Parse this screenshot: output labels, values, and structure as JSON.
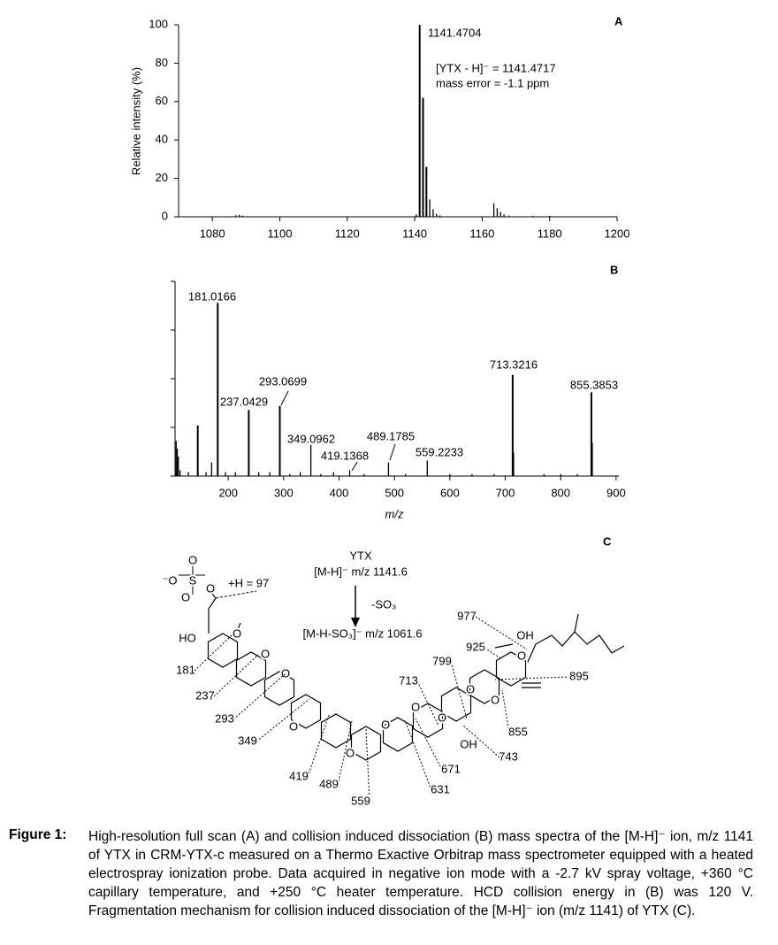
{
  "chart_data": [
    {
      "type": "bar",
      "panel_label": "A",
      "ylabel": "Relative intensity (%)",
      "x": [
        1087,
        1088,
        1089,
        1140.47,
        1141.4704,
        1142.47,
        1143.47,
        1144.47,
        1145.47,
        1146.47,
        1147.5,
        1163.46,
        1164.46,
        1165.46,
        1166.46,
        1168,
        1175,
        1180
      ],
      "values": [
        0.8,
        1,
        0.6,
        1.2,
        100,
        62,
        26,
        9,
        4,
        1.5,
        0.7,
        7,
        4.5,
        2.5,
        1.2,
        0.6,
        0.5,
        0.5
      ],
      "color": "#000000",
      "xlim": [
        1070,
        1200
      ],
      "xticks": [
        1080,
        1100,
        1120,
        1140,
        1160,
        1180,
        1200
      ],
      "ylim": [
        0,
        100
      ],
      "yticks": [
        0,
        20,
        40,
        60,
        80,
        100
      ],
      "annotations": [
        "[YTX - H]⁻ = 1141.4717",
        "mass error = -1.1 ppm"
      ]
    },
    {
      "type": "bar",
      "panel_label": "B",
      "xlabel": "m/z",
      "x": [
        106,
        108,
        110,
        113,
        128,
        145,
        160,
        170,
        181.0166,
        195,
        213,
        237.0429,
        255,
        275,
        293.0699,
        311,
        330,
        349.0962,
        367,
        390,
        419.1368,
        445,
        489.1785,
        520,
        559.2233,
        600,
        640,
        680,
        713.3216,
        715,
        770,
        800,
        830,
        855.3853,
        857
      ],
      "values": [
        18,
        14,
        10,
        3,
        2,
        26,
        2,
        7,
        89,
        2,
        2,
        34,
        2,
        2,
        36,
        1,
        2,
        16,
        1,
        2,
        3,
        1,
        7,
        1,
        8,
        1,
        1,
        1,
        52,
        12,
        1,
        1,
        1,
        43,
        17
      ],
      "color": "#000000",
      "xlim": [
        104,
        905
      ],
      "xticks": [
        200,
        300,
        400,
        500,
        600,
        700,
        800,
        900
      ],
      "ylim": [
        0,
        100
      ],
      "yticks": [
        0,
        25,
        50,
        75,
        100
      ],
      "show_ytick_labels": false
    }
  ],
  "diagram": {
    "panel_label": "C",
    "title": "YTX",
    "precursor": "[M-H]⁻ m/z 1141.6",
    "loss": "-SO₃",
    "product": "[M-H-SO₃]⁻ m/z 1061.6",
    "sulfate_label": "+H = 97",
    "sulfate_atoms": [
      "O",
      "⁻O",
      "S",
      "O",
      "O"
    ],
    "hydroxyls": [
      "HO",
      "OH",
      "OH"
    ],
    "ring_oxygens": [
      "O",
      "O",
      "O",
      "O",
      "O",
      "O",
      "O",
      "O",
      "O",
      "O",
      "O"
    ],
    "fragments": [
      "181",
      "237",
      "293",
      "349",
      "419",
      "489",
      "559",
      "631",
      "671",
      "713",
      "743",
      "799",
      "855",
      "895",
      "925",
      "977"
    ]
  },
  "caption": {
    "label": "Figure 1:",
    "text": "High-resolution full scan (A) and collision induced dissociation (B) mass spectra of the [M-H]⁻ ion, m/z 1141 of YTX in CRM-YTX-c measured on a Thermo Exactive Orbitrap mass spectrometer equipped with a heated electrospray ionization probe. Data acquired in negative ion mode with a -2.7 kV spray voltage, +360 °C capillary temperature, and +250 °C heater temperature. HCD collision energy in (B) was 120 V. Fragmentation mechanism for collision induced dissociation of the [M-H]⁻ ion (m/z 1141) of YTX (C)."
  }
}
